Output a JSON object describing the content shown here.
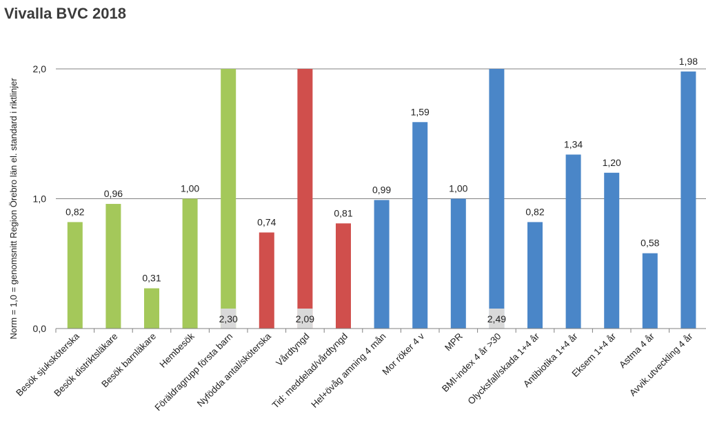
{
  "chart_data": {
    "type": "bar",
    "title": "Vivalla BVC 2018",
    "ylabel": "Norm = 1,0 = genomsnitt Region Örebro län el. standard i riktlinjer",
    "xlabel": "",
    "ylim": [
      0,
      2
    ],
    "yticks": [
      "0,0",
      "1,0",
      "2,0"
    ],
    "grid": true,
    "legend": "none",
    "colors": {
      "green": "#a4c85a",
      "red": "#d04f4c",
      "blue": "#4a86c8",
      "grid": "#808080",
      "overflow_box": "#d9d9d9"
    },
    "categories": [
      "Besök sjuksköterska",
      "Besök distriktsläkare",
      "Besök barnläkare",
      "Hembesök",
      "Föräldragrupp första barn",
      "Nyfödda antal/sköterska",
      "Vårdtyngd",
      "Tid: meddelad/vårdtyngd",
      "Hel+övåg amning 4 mån",
      "Mor röker 4 v",
      "MPR",
      "BMI-index 4 år >30",
      "Olycksfall/skada 1+4 år",
      "Antibiotika 1+4 år",
      "Eksem 1+4 år",
      "Astma 4 år",
      "Avvik.utveckling 4 år"
    ],
    "values": [
      0.82,
      0.96,
      0.31,
      1.0,
      2.3,
      0.74,
      2.09,
      0.81,
      0.99,
      1.59,
      1.0,
      2.49,
      0.82,
      1.34,
      1.2,
      0.58,
      1.98
    ],
    "labels": [
      "0,82",
      "0,96",
      "0,31",
      "1,00",
      "2,30",
      "0,74",
      "2,09",
      "0,81",
      "0,99",
      "1,59",
      "1,00",
      "2,49",
      "0,82",
      "1,34",
      "1,20",
      "0,58",
      "1,98"
    ],
    "bar_colors": [
      "green",
      "green",
      "green",
      "green",
      "green",
      "red",
      "red",
      "red",
      "blue",
      "blue",
      "blue",
      "blue",
      "blue",
      "blue",
      "blue",
      "blue",
      "blue"
    ]
  }
}
